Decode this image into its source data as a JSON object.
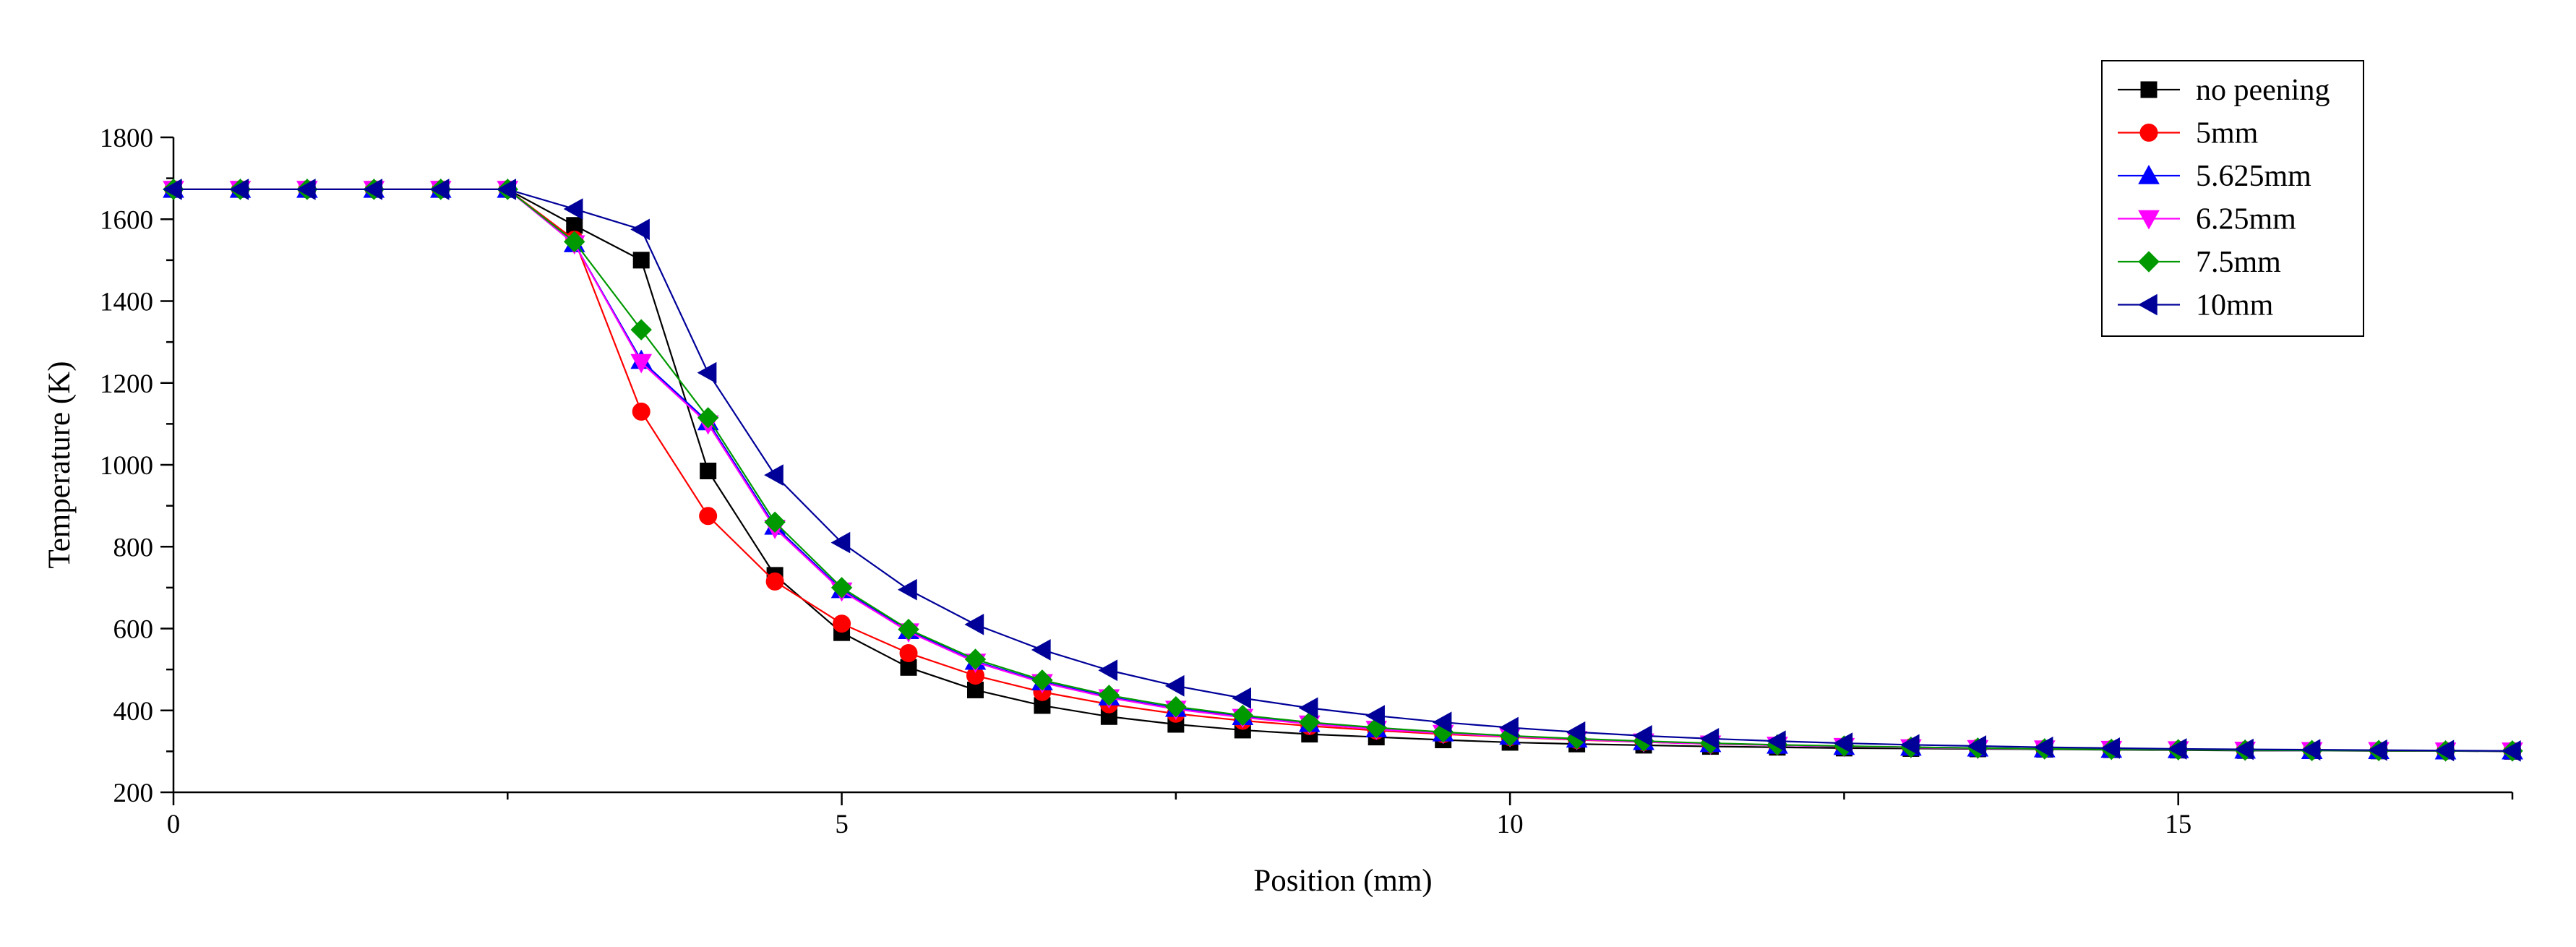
{
  "chart_data": {
    "type": "line",
    "title": "",
    "xlabel": "Position (mm)",
    "ylabel": "Temperature (K)",
    "xlim": [
      0,
      17.5
    ],
    "ylim": [
      200,
      1800
    ],
    "xticks": [
      0,
      5,
      10,
      15
    ],
    "yticks": [
      200,
      400,
      600,
      800,
      1000,
      1200,
      1400,
      1600,
      1800
    ],
    "grid": false,
    "legend_position": "top-right",
    "x": [
      0,
      0.5,
      1,
      1.5,
      2,
      2.5,
      3,
      3.5,
      4,
      4.5,
      5,
      5.5,
      6,
      6.5,
      7,
      7.5,
      8,
      8.5,
      9,
      9.5,
      10,
      10.5,
      11,
      11.5,
      12,
      12.5,
      13,
      13.5,
      14,
      14.5,
      15,
      15.5,
      16,
      16.5,
      17,
      17.5
    ],
    "series": [
      {
        "name": "no peening",
        "color": "#000000",
        "marker": "square",
        "values": [
          1673,
          1673,
          1673,
          1673,
          1673,
          1673,
          1585,
          1500,
          985,
          730,
          590,
          505,
          450,
          412,
          385,
          366,
          352,
          342,
          335,
          328,
          322,
          318,
          315,
          312,
          310,
          308,
          307,
          306,
          305,
          304,
          303,
          302,
          302,
          301,
          301,
          300
        ]
      },
      {
        "name": "5mm",
        "color": "#ff0000",
        "marker": "circle",
        "values": [
          1673,
          1673,
          1673,
          1673,
          1673,
          1673,
          1550,
          1130,
          875,
          715,
          612,
          540,
          485,
          445,
          415,
          392,
          375,
          362,
          351,
          342,
          335,
          328,
          323,
          318,
          315,
          312,
          310,
          308,
          306,
          305,
          304,
          303,
          302,
          302,
          301,
          301
        ]
      },
      {
        "name": "5.625mm",
        "color": "#0000ff",
        "marker": "triangle-up",
        "values": [
          1673,
          1673,
          1673,
          1673,
          1673,
          1673,
          1540,
          1255,
          1105,
          850,
          695,
          595,
          520,
          470,
          433,
          405,
          385,
          368,
          355,
          345,
          337,
          330,
          324,
          319,
          315,
          312,
          310,
          308,
          306,
          305,
          304,
          303,
          302,
          302,
          301,
          301
        ]
      },
      {
        "name": "6.25mm",
        "color": "#ff00ff",
        "marker": "triangle-down",
        "values": [
          1673,
          1673,
          1673,
          1673,
          1673,
          1673,
          1540,
          1250,
          1100,
          845,
          692,
          592,
          518,
          468,
          431,
          403,
          383,
          367,
          354,
          344,
          336,
          329,
          323,
          318,
          315,
          312,
          309,
          307,
          306,
          305,
          304,
          303,
          302,
          302,
          301,
          301
        ]
      },
      {
        "name": "7.5mm",
        "color": "#009900",
        "marker": "diamond",
        "values": [
          1673,
          1673,
          1673,
          1673,
          1673,
          1673,
          1545,
          1330,
          1115,
          860,
          700,
          598,
          525,
          474,
          437,
          409,
          388,
          371,
          358,
          347,
          338,
          331,
          325,
          320,
          316,
          313,
          310,
          308,
          306,
          305,
          304,
          303,
          302,
          302,
          301,
          301
        ]
      },
      {
        "name": "10mm",
        "color": "#000099",
        "marker": "triangle-left",
        "values": [
          1673,
          1673,
          1673,
          1673,
          1673,
          1673,
          1625,
          1575,
          1225,
          975,
          810,
          695,
          610,
          548,
          498,
          460,
          430,
          406,
          387,
          371,
          358,
          347,
          338,
          331,
          325,
          320,
          316,
          313,
          310,
          308,
          306,
          305,
          304,
          303,
          302,
          301
        ]
      }
    ]
  }
}
